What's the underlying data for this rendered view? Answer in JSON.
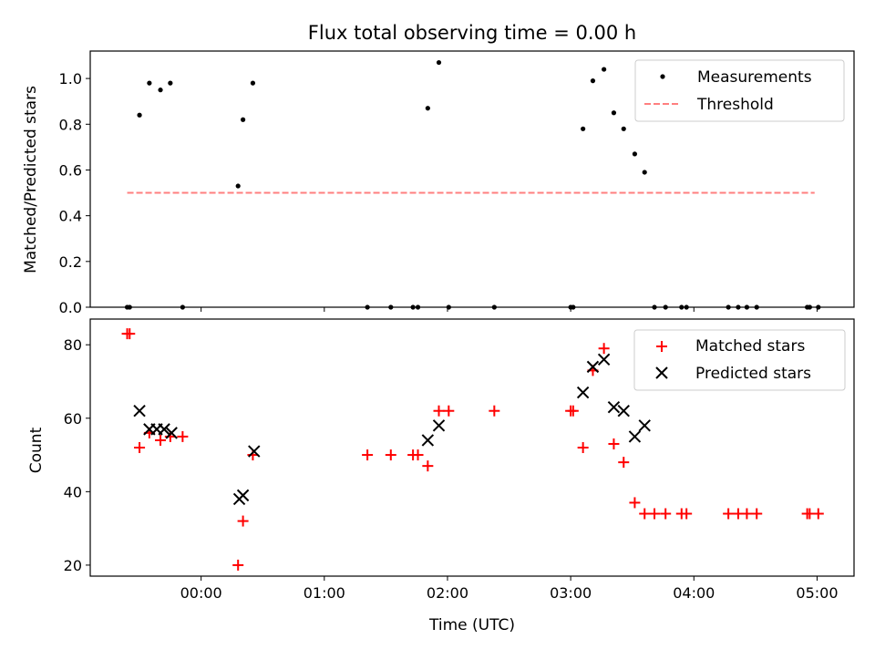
{
  "chart_data": [
    {
      "type": "scatter",
      "title": "Flux total observing time = 0.00 h",
      "xlabel": "",
      "ylabel": "Matched/Predicted stars",
      "x_unit": "hours_since_00:00_UTC",
      "xlim": [
        -0.9,
        5.3
      ],
      "ylim": [
        0,
        1.12
      ],
      "yticks": [
        0.0,
        0.2,
        0.4,
        0.6,
        0.8,
        1.0
      ],
      "ytick_labels": [
        "0.0",
        "0.2",
        "0.4",
        "0.6",
        "0.8",
        "1.0"
      ],
      "xticks": [
        0,
        1,
        2,
        3,
        4,
        5
      ],
      "legend": {
        "placement": "top-right",
        "entries": [
          "Measurements",
          "Threshold"
        ]
      },
      "series": [
        {
          "name": "Measurements",
          "marker": "dot",
          "color": "#000000",
          "points": [
            {
              "x": -0.6,
              "y": 0.0
            },
            {
              "x": -0.58,
              "y": 0.0
            },
            {
              "x": -0.5,
              "y": 0.84
            },
            {
              "x": -0.42,
              "y": 0.98
            },
            {
              "x": -0.33,
              "y": 0.95
            },
            {
              "x": -0.25,
              "y": 0.98
            },
            {
              "x": -0.15,
              "y": 0.0
            },
            {
              "x": 0.3,
              "y": 0.53
            },
            {
              "x": 0.34,
              "y": 0.82
            },
            {
              "x": 0.42,
              "y": 0.98
            },
            {
              "x": 1.35,
              "y": 0.0
            },
            {
              "x": 1.54,
              "y": 0.0
            },
            {
              "x": 1.72,
              "y": 0.0
            },
            {
              "x": 1.76,
              "y": 0.0
            },
            {
              "x": 1.84,
              "y": 0.87
            },
            {
              "x": 1.93,
              "y": 1.07
            },
            {
              "x": 2.01,
              "y": 0.0
            },
            {
              "x": 2.38,
              "y": 0.0
            },
            {
              "x": 3.0,
              "y": 0.0
            },
            {
              "x": 3.02,
              "y": 0.0
            },
            {
              "x": 3.1,
              "y": 0.78
            },
            {
              "x": 3.18,
              "y": 0.99
            },
            {
              "x": 3.27,
              "y": 1.04
            },
            {
              "x": 3.35,
              "y": 0.85
            },
            {
              "x": 3.43,
              "y": 0.78
            },
            {
              "x": 3.52,
              "y": 0.67
            },
            {
              "x": 3.6,
              "y": 0.59
            },
            {
              "x": 3.68,
              "y": 0.0
            },
            {
              "x": 3.77,
              "y": 0.0
            },
            {
              "x": 3.9,
              "y": 0.0
            },
            {
              "x": 3.94,
              "y": 0.0
            },
            {
              "x": 4.28,
              "y": 0.0
            },
            {
              "x": 4.36,
              "y": 0.0
            },
            {
              "x": 4.43,
              "y": 0.0
            },
            {
              "x": 4.51,
              "y": 0.0
            },
            {
              "x": 4.92,
              "y": 0.0
            },
            {
              "x": 4.94,
              "y": 0.0
            },
            {
              "x": 5.01,
              "y": 0.0
            }
          ]
        },
        {
          "name": "Threshold",
          "marker": "dashed-line",
          "color": "#ff7f7f",
          "points": [
            {
              "x": -0.6,
              "y": 0.5
            },
            {
              "x": 4.98,
              "y": 0.5
            }
          ]
        }
      ]
    },
    {
      "type": "scatter",
      "title": "",
      "xlabel": "Time (UTC)",
      "ylabel": "Count",
      "x_unit": "hours_since_00:00_UTC",
      "xlim": [
        -0.9,
        5.3
      ],
      "ylim": [
        17,
        87
      ],
      "yticks": [
        20,
        40,
        60,
        80
      ],
      "ytick_labels": [
        "20",
        "40",
        "60",
        "80"
      ],
      "xticks": [
        0,
        1,
        2,
        3,
        4,
        5
      ],
      "xtick_labels": [
        "00:00",
        "01:00",
        "02:00",
        "03:00",
        "04:00",
        "05:00"
      ],
      "legend": {
        "placement": "top-right",
        "entries": [
          "Matched stars",
          "Predicted stars"
        ]
      },
      "series": [
        {
          "name": "Matched stars",
          "marker": "plus",
          "color": "#ff0000",
          "points": [
            {
              "x": -0.6,
              "y": 83
            },
            {
              "x": -0.58,
              "y": 83
            },
            {
              "x": -0.5,
              "y": 52
            },
            {
              "x": -0.42,
              "y": 56
            },
            {
              "x": -0.33,
              "y": 54
            },
            {
              "x": -0.25,
              "y": 55
            },
            {
              "x": -0.15,
              "y": 55
            },
            {
              "x": 0.3,
              "y": 20
            },
            {
              "x": 0.34,
              "y": 32
            },
            {
              "x": 0.42,
              "y": 50
            },
            {
              "x": 1.35,
              "y": 50
            },
            {
              "x": 1.54,
              "y": 50
            },
            {
              "x": 1.72,
              "y": 50
            },
            {
              "x": 1.76,
              "y": 50
            },
            {
              "x": 1.84,
              "y": 47
            },
            {
              "x": 1.93,
              "y": 62
            },
            {
              "x": 2.01,
              "y": 62
            },
            {
              "x": 2.38,
              "y": 62
            },
            {
              "x": 3.0,
              "y": 62
            },
            {
              "x": 3.02,
              "y": 62
            },
            {
              "x": 3.1,
              "y": 52
            },
            {
              "x": 3.18,
              "y": 73
            },
            {
              "x": 3.27,
              "y": 79
            },
            {
              "x": 3.35,
              "y": 53
            },
            {
              "x": 3.43,
              "y": 48
            },
            {
              "x": 3.52,
              "y": 37
            },
            {
              "x": 3.6,
              "y": 34
            },
            {
              "x": 3.68,
              "y": 34
            },
            {
              "x": 3.77,
              "y": 34
            },
            {
              "x": 3.9,
              "y": 34
            },
            {
              "x": 3.94,
              "y": 34
            },
            {
              "x": 4.28,
              "y": 34
            },
            {
              "x": 4.36,
              "y": 34
            },
            {
              "x": 4.43,
              "y": 34
            },
            {
              "x": 4.51,
              "y": 34
            },
            {
              "x": 4.92,
              "y": 34
            },
            {
              "x": 4.94,
              "y": 34
            },
            {
              "x": 5.01,
              "y": 34
            }
          ]
        },
        {
          "name": "Predicted stars",
          "marker": "x",
          "color": "#000000",
          "points": [
            {
              "x": -0.5,
              "y": 62
            },
            {
              "x": -0.42,
              "y": 57
            },
            {
              "x": -0.36,
              "y": 57
            },
            {
              "x": -0.3,
              "y": 57
            },
            {
              "x": -0.24,
              "y": 56
            },
            {
              "x": 0.31,
              "y": 38
            },
            {
              "x": 0.34,
              "y": 39
            },
            {
              "x": 0.43,
              "y": 51
            },
            {
              "x": 1.84,
              "y": 54
            },
            {
              "x": 1.93,
              "y": 58
            },
            {
              "x": 3.1,
              "y": 67
            },
            {
              "x": 3.18,
              "y": 74
            },
            {
              "x": 3.27,
              "y": 76
            },
            {
              "x": 3.35,
              "y": 63
            },
            {
              "x": 3.43,
              "y": 62
            },
            {
              "x": 3.52,
              "y": 55
            },
            {
              "x": 3.6,
              "y": 58
            }
          ]
        }
      ]
    }
  ]
}
